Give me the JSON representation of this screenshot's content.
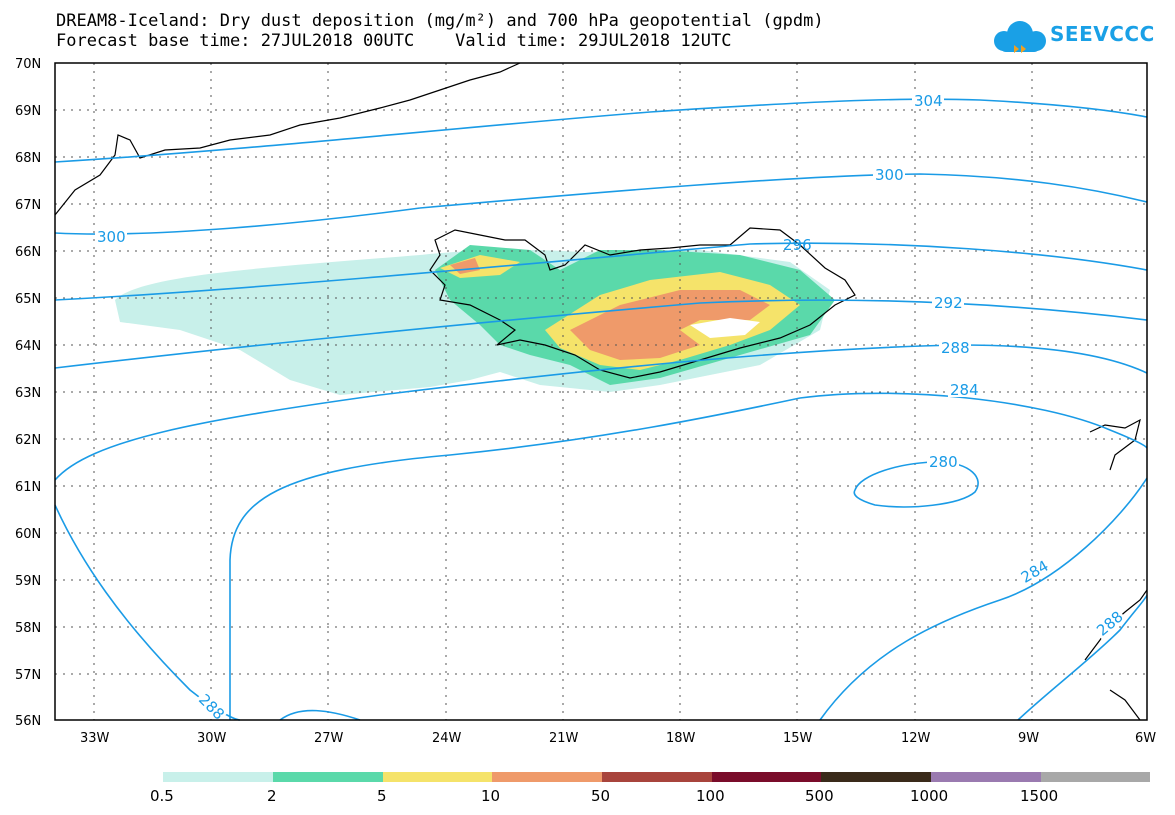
{
  "title": {
    "line1": "DREAM8-Iceland: Dry dust deposition (mg/m²) and 700 hPa geopotential (gpdm)",
    "line2": "Forecast base time: 27JUL2018 00UTC    Valid time: 29JUL2018 12UTC"
  },
  "logo": {
    "text": "SEEVCCC",
    "icon": "cloud-icon"
  },
  "axes": {
    "lat_labels": [
      "70N",
      "69N",
      "68N",
      "67N",
      "66N",
      "65N",
      "64N",
      "63N",
      "62N",
      "61N",
      "60N",
      "59N",
      "58N",
      "57N",
      "56N"
    ],
    "lat_values": [
      70,
      69,
      68,
      67,
      66,
      65,
      64,
      63,
      62,
      61,
      60,
      59,
      58,
      57,
      56
    ],
    "lon_labels": [
      "33W",
      "30W",
      "27W",
      "24W",
      "21W",
      "18W",
      "15W",
      "12W",
      "9W",
      "6W"
    ],
    "lon_values": [
      -33,
      -30,
      -27,
      -24,
      -21,
      -18,
      -15,
      -12,
      -9,
      -6
    ],
    "lat_range": [
      56,
      70
    ],
    "lon_range": [
      -34,
      -6
    ],
    "grid": "dotted"
  },
  "contour_labels": [
    "304",
    "300",
    "300",
    "296",
    "292",
    "288",
    "284",
    "280",
    "284",
    "288",
    "288"
  ],
  "legend": {
    "labels": [
      "0.5",
      "2",
      "5",
      "10",
      "50",
      "100",
      "500",
      "1000",
      "1500"
    ],
    "colors": [
      "#c8f0ea",
      "#5ad9aa",
      "#f5e36a",
      "#ef9a6a",
      "#a8443c",
      "#7a0c2a",
      "#3a2a1a",
      "#9a7ab0",
      "#a8a8a8"
    ]
  },
  "colors": {
    "contour": "#1a9be6",
    "coast": "#000000",
    "frame": "#000000"
  }
}
